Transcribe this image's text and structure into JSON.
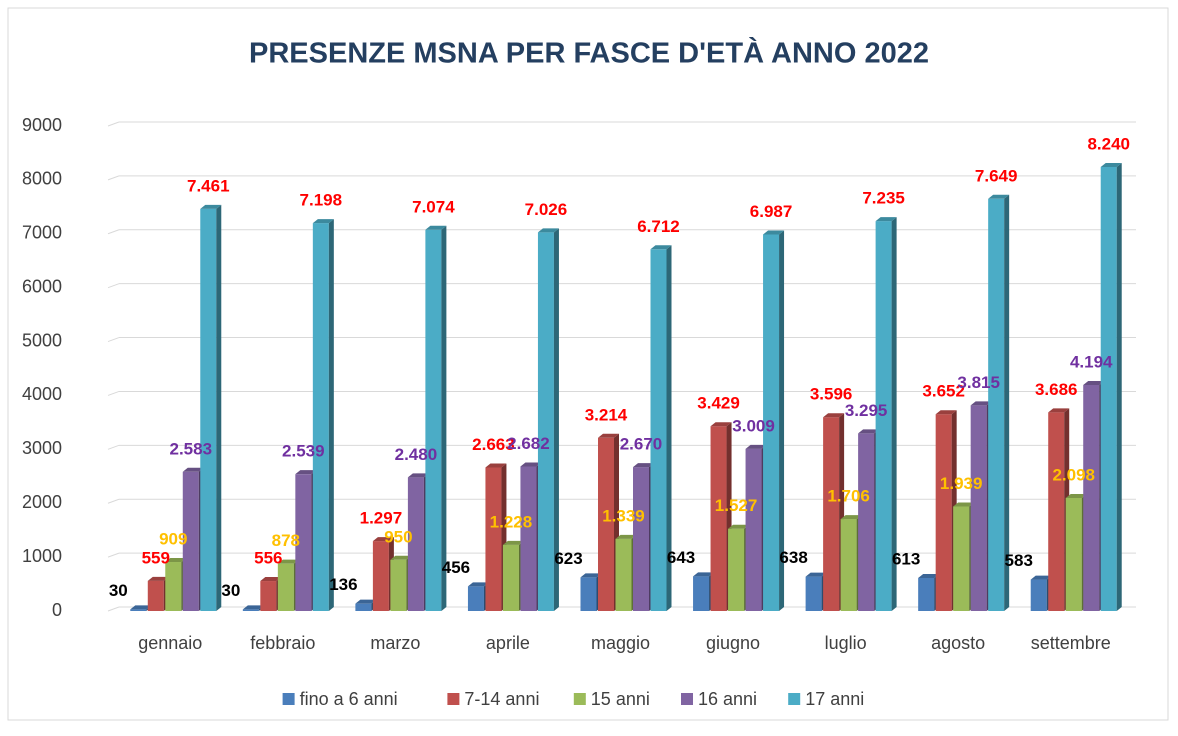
{
  "chart_data": {
    "type": "bar3d",
    "title": "PRESENZE MSNA PER FASCE D'ETÀ ANNO 2022",
    "categories": [
      "gennaio",
      "febbraio",
      "marzo",
      "aprile",
      "maggio",
      "giugno",
      "luglio",
      "agosto",
      "settembre"
    ],
    "series": [
      {
        "name": "fino a 6 anni",
        "color": "#4a7ebb",
        "label_color": "#000000",
        "values": [
          30,
          30,
          136,
          456,
          623,
          643,
          638,
          613,
          583
        ],
        "value_labels": [
          "30",
          "30",
          "136",
          "456",
          "623",
          "643",
          "638",
          "613",
          "583"
        ]
      },
      {
        "name": "7-14 anni",
        "color": "#c0504d",
        "label_color": "#ff0000",
        "values": [
          559,
          556,
          1297,
          2663,
          3214,
          3429,
          3596,
          3652,
          3686
        ],
        "value_labels": [
          "559",
          "556",
          "1.297",
          "2.663",
          "3.214",
          "3.429",
          "3.596",
          "3.652",
          "3.686"
        ]
      },
      {
        "name": "15 anni",
        "color": "#9bbb59",
        "label_color": "#ffc000",
        "values": [
          909,
          878,
          950,
          1228,
          1339,
          1527,
          1706,
          1939,
          2098
        ],
        "value_labels": [
          "909",
          "878",
          "950",
          "1.228",
          "1.339",
          "1.527",
          "1.706",
          "1.939",
          "2.098"
        ]
      },
      {
        "name": "16 anni",
        "color": "#8064a2",
        "label_color": "#7030a0",
        "values": [
          2583,
          2539,
          2480,
          2682,
          2670,
          3009,
          3295,
          3815,
          4194
        ],
        "value_labels": [
          "2.583",
          "2.539",
          "2.480",
          "2.682",
          "2.670",
          "3.009",
          "3.295",
          "3.815",
          "4.194"
        ]
      },
      {
        "name": "17 anni",
        "color": "#4bacc6",
        "label_color": "#ff0000",
        "values": [
          7461,
          7198,
          7074,
          7026,
          6712,
          6987,
          7235,
          7649,
          8240
        ],
        "value_labels": [
          "7.461",
          "7.198",
          "7.074",
          "7.026",
          "6.712",
          "6.987",
          "7.235",
          "7.649",
          "8.240"
        ]
      }
    ],
    "ylim": [
      0,
      9000
    ],
    "yticks": [
      0,
      1000,
      2000,
      3000,
      4000,
      5000,
      6000,
      7000,
      8000,
      9000
    ],
    "grid": true,
    "legend": "bottom"
  }
}
